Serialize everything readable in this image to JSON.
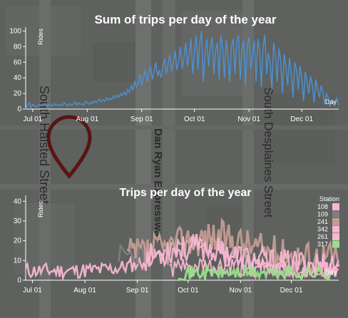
{
  "map": {
    "streets": [
      "South Halsted Street",
      "Dan Ryan Expressway",
      "South Desplaines Street"
    ],
    "marker_icon": "map-pin-icon",
    "marker_color": "#5a1414"
  },
  "chart_data": [
    {
      "type": "line",
      "title": "Sum of trips per day of the year",
      "ylabel": "Rides",
      "xlabel": "Day",
      "x_ticks": [
        "Jul 01",
        "Aug 01",
        "Sep 01",
        "Oct 01",
        "Nov 01",
        "Dec 01"
      ],
      "y_ticks": [
        "0",
        "20",
        "40",
        "60",
        "80",
        "100"
      ],
      "ylim": [
        0,
        105
      ],
      "x_range": [
        "Jun 27",
        "Dec 31"
      ],
      "grid": false,
      "series": [
        {
          "color": "#4e8fd0",
          "values": [
            0,
            5,
            8,
            2,
            6,
            4,
            3,
            5,
            6,
            4,
            5,
            7,
            3,
            6,
            5,
            4,
            7,
            5,
            6,
            4,
            6,
            5,
            8,
            6,
            4,
            7,
            5,
            6,
            9,
            5,
            8,
            6,
            7,
            5,
            10,
            8,
            6,
            9,
            7,
            11,
            8,
            10,
            13,
            9,
            12,
            10,
            15,
            11,
            14,
            12,
            17,
            14,
            18,
            15,
            20,
            17,
            22,
            18,
            25,
            21,
            30,
            24,
            35,
            28,
            32,
            45,
            30,
            40,
            50,
            35,
            45,
            55,
            38,
            48,
            60,
            42,
            50,
            40,
            55,
            65,
            45,
            58,
            70,
            48,
            60,
            75,
            50,
            62,
            80,
            52,
            66,
            85,
            55,
            70,
            90,
            45,
            75,
            95,
            50,
            85,
            100,
            35,
            70,
            90,
            55,
            80,
            92,
            45,
            75,
            85,
            38,
            95,
            80,
            40,
            88,
            70,
            35,
            80,
            90,
            45,
            85,
            95,
            38,
            78,
            88,
            30,
            82,
            92,
            50,
            70,
            88,
            35,
            90,
            75,
            28,
            80,
            95,
            45,
            72,
            60,
            25,
            85,
            70,
            35,
            78,
            62,
            20,
            70,
            55,
            30,
            65,
            45,
            15,
            60,
            50,
            25,
            55,
            40,
            10,
            48,
            35,
            20,
            42,
            30,
            8,
            38,
            25,
            15,
            30,
            22,
            6,
            20,
            15,
            3,
            12,
            8,
            10,
            14,
            5
          ],
          "start_date": "2019-06-27"
        }
      ]
    },
    {
      "type": "line",
      "title": "Trips per day of the year",
      "ylabel": "Rides",
      "xlabel": "Day",
      "x_ticks": [
        "Jul 01",
        "Aug 01",
        "Sep 01",
        "Oct 01",
        "Nov 01",
        "Dec 01"
      ],
      "y_ticks": [
        "0",
        "10",
        "20",
        "30",
        "40"
      ],
      "ylim": [
        0,
        43
      ],
      "grid": false,
      "legend_title": "Station",
      "legend_position": "right",
      "series": [
        {
          "name": "108",
          "color": "#f7b6d2"
        },
        {
          "name": "109",
          "color": "#7f7f7f"
        },
        {
          "name": "241",
          "color": "#c49c94"
        },
        {
          "name": "342",
          "color": "#f7b6d2"
        },
        {
          "name": "261",
          "color": "#f7b6d2"
        },
        {
          "name": "317",
          "color": "#98df8a"
        }
      ]
    }
  ]
}
